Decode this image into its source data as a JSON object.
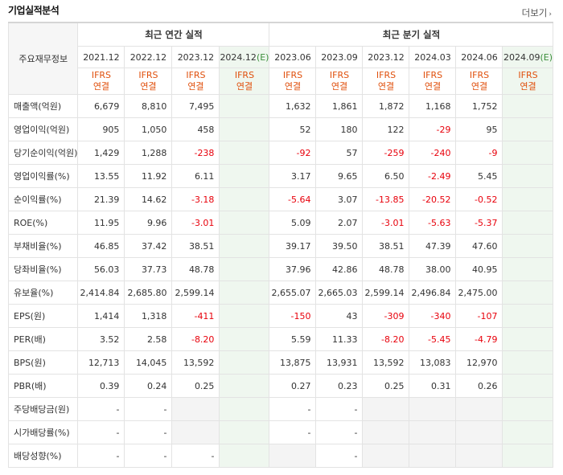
{
  "header": {
    "title": "기업실적분석",
    "more_label": "더보기"
  },
  "groups": {
    "label_header": "주요재무정보",
    "annual": "최근 연간 실적",
    "quarterly": "최근 분기 실적"
  },
  "periods": [
    {
      "label": "2021.12",
      "estimate": false
    },
    {
      "label": "2022.12",
      "estimate": false
    },
    {
      "label": "2023.12",
      "estimate": false
    },
    {
      "label": "2024.12",
      "estimate": true,
      "est_mark": "(E)"
    },
    {
      "label": "2023.06",
      "estimate": false
    },
    {
      "label": "2023.09",
      "estimate": false
    },
    {
      "label": "2023.12",
      "estimate": false
    },
    {
      "label": "2024.03",
      "estimate": false
    },
    {
      "label": "2024.06",
      "estimate": false
    },
    {
      "label": "2024.09",
      "estimate": true,
      "est_mark": "(E)"
    }
  ],
  "ifrs": {
    "line1": "IFRS",
    "line2": "연결"
  },
  "rows": [
    {
      "label": "매출액(억원)",
      "values": [
        "6,679",
        "8,810",
        "7,495",
        "",
        "1,632",
        "1,861",
        "1,872",
        "1,168",
        "1,752",
        ""
      ]
    },
    {
      "label": "영업이익(억원)",
      "values": [
        "905",
        "1,050",
        "458",
        "",
        "52",
        "180",
        "122",
        "-29",
        "95",
        ""
      ]
    },
    {
      "label": "당기순이익(억원)",
      "values": [
        "1,429",
        "1,288",
        "-238",
        "",
        "-92",
        "57",
        "-259",
        "-240",
        "-9",
        ""
      ]
    },
    {
      "label": "영업이익률(%)",
      "values": [
        "13.55",
        "11.92",
        "6.11",
        "",
        "3.17",
        "9.65",
        "6.50",
        "-2.49",
        "5.45",
        ""
      ]
    },
    {
      "label": "순이익률(%)",
      "values": [
        "21.39",
        "14.62",
        "-3.18",
        "",
        "-5.64",
        "3.07",
        "-13.85",
        "-20.52",
        "-0.52",
        ""
      ]
    },
    {
      "label": "ROE(%)",
      "values": [
        "11.95",
        "9.96",
        "-3.01",
        "",
        "5.09",
        "2.07",
        "-3.01",
        "-5.63",
        "-5.37",
        ""
      ]
    },
    {
      "label": "부채비율(%)",
      "values": [
        "46.85",
        "37.42",
        "38.51",
        "",
        "39.17",
        "39.50",
        "38.51",
        "47.39",
        "47.60",
        ""
      ]
    },
    {
      "label": "당좌비율(%)",
      "values": [
        "56.03",
        "37.73",
        "48.78",
        "",
        "37.96",
        "42.86",
        "48.78",
        "38.00",
        "40.95",
        ""
      ]
    },
    {
      "label": "유보율(%)",
      "values": [
        "2,414.84",
        "2,685.80",
        "2,599.14",
        "",
        "2,655.07",
        "2,665.03",
        "2,599.14",
        "2,496.84",
        "2,475.00",
        ""
      ]
    },
    {
      "label": "EPS(원)",
      "values": [
        "1,414",
        "1,318",
        "-411",
        "",
        "-150",
        "43",
        "-309",
        "-340",
        "-107",
        ""
      ]
    },
    {
      "label": "PER(배)",
      "values": [
        "3.52",
        "2.58",
        "-8.20",
        "",
        "5.59",
        "11.33",
        "-8.20",
        "-5.45",
        "-4.79",
        ""
      ]
    },
    {
      "label": "BPS(원)",
      "values": [
        "12,713",
        "14,045",
        "13,592",
        "",
        "13,875",
        "13,931",
        "13,592",
        "13,083",
        "12,970",
        ""
      ]
    },
    {
      "label": "PBR(배)",
      "values": [
        "0.39",
        "0.24",
        "0.25",
        "",
        "0.27",
        "0.23",
        "0.25",
        "0.31",
        "0.26",
        ""
      ]
    },
    {
      "label": "주당배당금(원)",
      "values": [
        "-",
        "-",
        null,
        "",
        "-",
        "-",
        null,
        null,
        null,
        ""
      ]
    },
    {
      "label": "시가배당률(%)",
      "values": [
        "-",
        "-",
        null,
        "",
        "-",
        "-",
        null,
        null,
        null,
        ""
      ]
    },
    {
      "label": "배당성향(%)",
      "values": [
        "-",
        "-",
        "-",
        "",
        null,
        "-",
        null,
        null,
        null,
        ""
      ]
    }
  ],
  "colors": {
    "ifrs": "#e0500d",
    "negative": "#e8000b",
    "estimate_bg": "#eff7ef",
    "empty_bg": "#f4f4f4",
    "estimate_mark": "#3b8e3b"
  }
}
